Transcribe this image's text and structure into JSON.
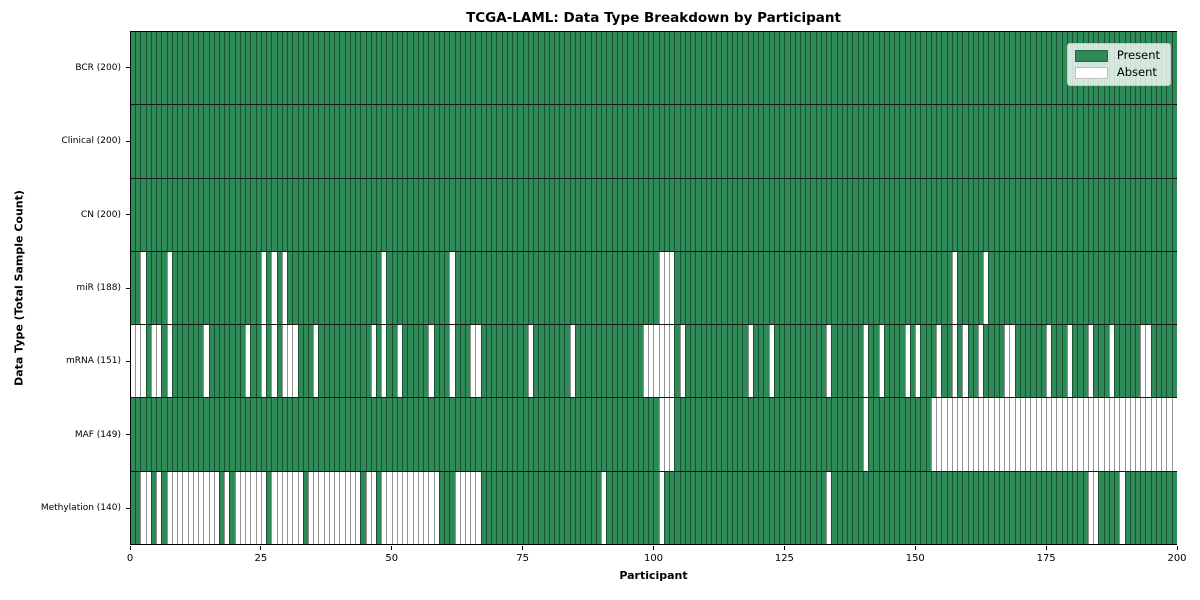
{
  "chart_data": {
    "type": "heatmap",
    "title": "TCGA-LAML: Data Type Breakdown by Participant",
    "xlabel": "Participant",
    "ylabel": "Data Type (Total Sample Count)",
    "x_min": 0,
    "x_max": 200,
    "x_ticks": [
      0,
      25,
      50,
      75,
      100,
      125,
      150,
      175,
      200
    ],
    "n_participants": 200,
    "grid": "off",
    "legend": {
      "position": "upper-right",
      "present_label": "Present",
      "absent_label": "Absent"
    },
    "colors": {
      "present": "#2e8b57",
      "absent": "#ffffff",
      "cell_border": "rgba(0,0,0,0.42)"
    },
    "rows": [
      {
        "data_type": "BCR",
        "label": "BCR (200)",
        "total_samples": 200,
        "absent_participants": []
      },
      {
        "data_type": "Clinical",
        "label": "Clinical (200)",
        "total_samples": 200,
        "absent_participants": []
      },
      {
        "data_type": "CN",
        "label": "CN (200)",
        "total_samples": 200,
        "absent_participants": []
      },
      {
        "data_type": "miR",
        "label": "miR (188)",
        "total_samples": 188,
        "absent_participants": [
          2,
          7,
          25,
          27,
          29,
          48,
          61,
          101,
          102,
          103,
          157,
          163
        ]
      },
      {
        "data_type": "mRNA",
        "label": "mRNA (151)",
        "total_samples": 151,
        "absent_participants": [
          0,
          1,
          2,
          4,
          5,
          7,
          14,
          22,
          25,
          27,
          29,
          30,
          31,
          35,
          46,
          48,
          51,
          57,
          61,
          65,
          66,
          76,
          84,
          98,
          99,
          100,
          101,
          102,
          103,
          105,
          118,
          122,
          133,
          140,
          143,
          148,
          150,
          154,
          157,
          159,
          162,
          167,
          168,
          175,
          179,
          183,
          187,
          193,
          194
        ]
      },
      {
        "data_type": "MAF",
        "label": "MAF (149)",
        "total_samples": 149,
        "absent_participants": [
          101,
          102,
          103,
          140,
          153,
          154,
          155,
          156,
          157,
          158,
          159,
          160,
          161,
          162,
          163,
          164,
          165,
          166,
          167,
          168,
          169,
          170,
          171,
          172,
          173,
          174,
          175,
          176,
          177,
          178,
          179,
          180,
          181,
          182,
          183,
          184,
          185,
          186,
          187,
          188,
          189,
          190,
          191,
          192,
          193,
          194,
          195,
          196,
          197,
          198,
          199
        ]
      },
      {
        "data_type": "Methylation",
        "label": "Methylation (140)",
        "total_samples": 140,
        "absent_participants": [
          2,
          3,
          5,
          7,
          8,
          9,
          10,
          11,
          12,
          13,
          14,
          15,
          16,
          18,
          20,
          21,
          22,
          23,
          24,
          25,
          27,
          28,
          29,
          30,
          31,
          32,
          34,
          35,
          36,
          37,
          38,
          39,
          40,
          41,
          42,
          43,
          45,
          46,
          48,
          49,
          50,
          51,
          52,
          53,
          54,
          55,
          56,
          57,
          58,
          62,
          63,
          64,
          65,
          66,
          90,
          101,
          133,
          183,
          184,
          189
        ]
      }
    ]
  }
}
